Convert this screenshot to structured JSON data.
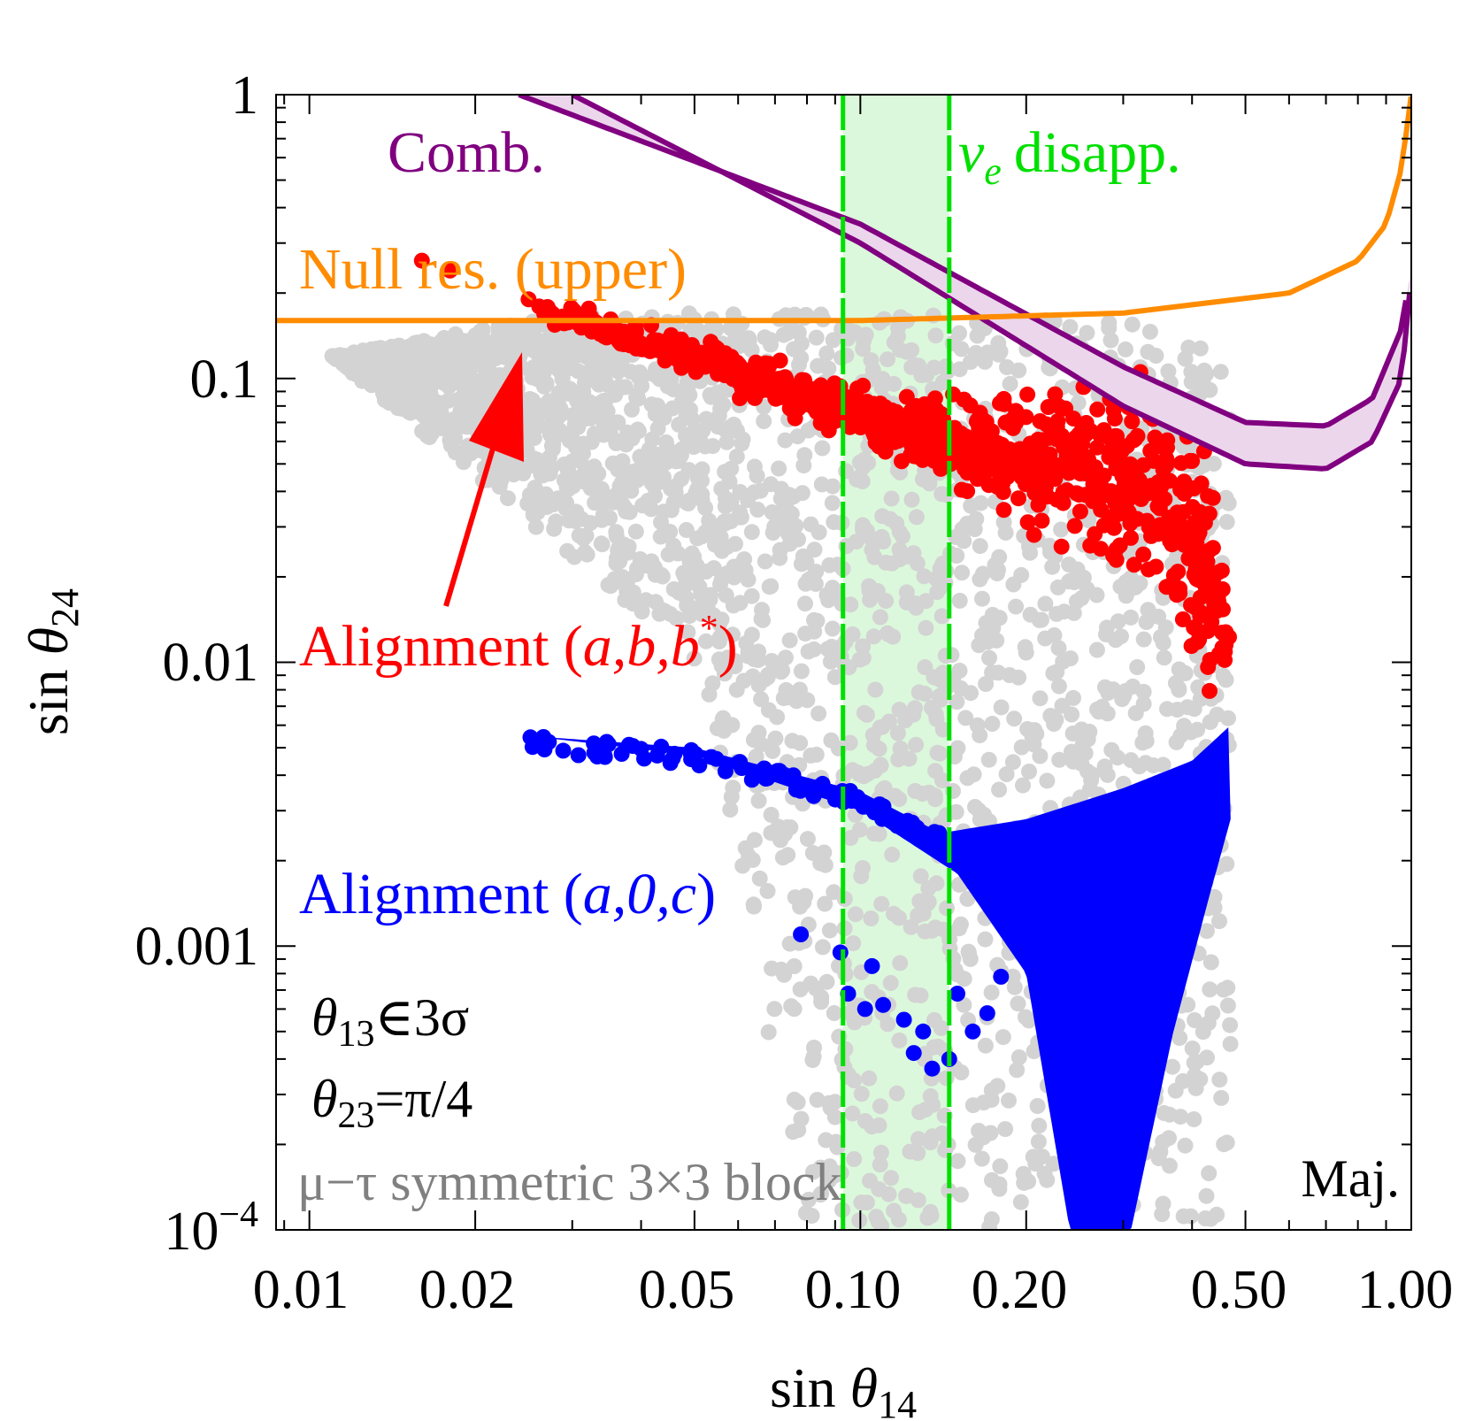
{
  "chart_data": {
    "type": "scatter",
    "title": "",
    "xlabel": "sin θ14",
    "ylabel": "sin θ24",
    "xscale": "log",
    "yscale": "log",
    "xlim": [
      0.0087,
      1.0
    ],
    "ylim": [
      0.0001,
      1.0
    ],
    "x_ticks": [
      {
        "value": 0.01,
        "label": "0.01"
      },
      {
        "value": 0.02,
        "label": "0.02"
      },
      {
        "value": 0.05,
        "label": "0.05"
      },
      {
        "value": 0.1,
        "label": "0.10"
      },
      {
        "value": 0.2,
        "label": "0.20"
      },
      {
        "value": 0.5,
        "label": "0.50"
      },
      {
        "value": 1.0,
        "label": "1.00"
      }
    ],
    "y_ticks": [
      {
        "value": 1,
        "label": "1"
      },
      {
        "value": 0.1,
        "label": "0.1"
      },
      {
        "value": 0.01,
        "label": "0.01"
      },
      {
        "value": 0.001,
        "label": "0.001"
      },
      {
        "value": 0.0001,
        "label": "10",
        "sup": "−4"
      }
    ],
    "colors": {
      "gray": "#d3d3d3",
      "red": "#ff0000",
      "blue": "#0000ff",
      "orange": "#ff8c00",
      "purple": "#800080",
      "purple_fill": "#ecd6ec",
      "green": "#00e000",
      "green_fill": "#dcf8dc"
    },
    "series": [
      {
        "name": "μ−τ symmetric 3×3 block",
        "kind": "scatter_region",
        "color": "#d3d3d3",
        "x_range": [
          0.011,
          0.47
        ],
        "upper_edge": [
          [
            0.011,
            0.12
          ],
          [
            0.03,
            0.17
          ],
          [
            0.1,
            0.17
          ],
          [
            0.3,
            0.16
          ],
          [
            0.45,
            0.13
          ],
          [
            0.47,
            0.1
          ]
        ],
        "lower_edge": [
          [
            0.011,
            0.12
          ],
          [
            0.05,
            0.01
          ],
          [
            0.08,
            0.0001
          ],
          [
            0.47,
            0.0001
          ]
        ]
      },
      {
        "name": "Alignment (a,b,b*)",
        "kind": "scatter_band",
        "color": "#ff0000",
        "center": [
          [
            0.016,
            0.25
          ],
          [
            0.025,
            0.18
          ],
          [
            0.05,
            0.12
          ],
          [
            0.1,
            0.072
          ],
          [
            0.16,
            0.058
          ],
          [
            0.25,
            0.05
          ],
          [
            0.35,
            0.04
          ],
          [
            0.42,
            0.02
          ],
          [
            0.46,
            0.012
          ]
        ],
        "spread_decades": [
          0.02,
          0.02,
          0.05,
          0.07,
          0.12,
          0.2,
          0.3,
          0.3,
          0.15
        ]
      },
      {
        "name": "Alignment (a,0,c)",
        "kind": "scatter_band",
        "color": "#0000ff",
        "upper": [
          [
            0.025,
            0.0055
          ],
          [
            0.05,
            0.005
          ],
          [
            0.1,
            0.0035
          ],
          [
            0.14,
            0.0025
          ],
          [
            0.2,
            0.0028
          ],
          [
            0.3,
            0.0036
          ],
          [
            0.4,
            0.0045
          ],
          [
            0.47,
            0.006
          ]
        ],
        "lower": [
          [
            0.025,
            0.0055
          ],
          [
            0.05,
            0.0047
          ],
          [
            0.1,
            0.003
          ],
          [
            0.15,
            0.0018
          ],
          [
            0.2,
            0.0008
          ],
          [
            0.24,
            0.0001
          ],
          [
            0.31,
            0.0001
          ],
          [
            0.37,
            0.0005
          ],
          [
            0.43,
            0.0015
          ],
          [
            0.47,
            0.0028
          ]
        ],
        "extra_points": [
          [
            0.078,
            0.0011
          ],
          [
            0.092,
            0.00095
          ],
          [
            0.105,
            0.00085
          ],
          [
            0.095,
            0.00068
          ],
          [
            0.102,
            0.0006
          ],
          [
            0.11,
            0.00062
          ],
          [
            0.12,
            0.00055
          ],
          [
            0.13,
            0.0005
          ],
          [
            0.125,
            0.00042
          ],
          [
            0.135,
            0.00037
          ],
          [
            0.145,
            0.0004
          ],
          [
            0.16,
            0.0005
          ],
          [
            0.17,
            0.00058
          ],
          [
            0.15,
            0.00068
          ],
          [
            0.18,
            0.00078
          ]
        ]
      },
      {
        "name": "Comb.",
        "kind": "line_band",
        "color": "#800080",
        "upper": [
          [
            0.024,
            1.0
          ],
          [
            0.1,
            0.35
          ],
          [
            0.3,
            0.11
          ],
          [
            0.5,
            0.07
          ],
          [
            0.7,
            0.068
          ],
          [
            0.85,
            0.085
          ],
          [
            0.96,
            0.15
          ],
          [
            1.0,
            0.25
          ]
        ],
        "lower": [
          [
            0.03,
            1.0
          ],
          [
            0.1,
            0.3
          ],
          [
            0.3,
            0.08
          ],
          [
            0.5,
            0.05
          ],
          [
            0.7,
            0.048
          ],
          [
            0.85,
            0.06
          ],
          [
            0.96,
            0.1
          ],
          [
            1.0,
            0.23
          ]
        ]
      },
      {
        "name": "Null res. (upper)",
        "kind": "line",
        "color": "#ff8c00",
        "points": [
          [
            0.0087,
            0.16
          ],
          [
            0.1,
            0.16
          ],
          [
            0.3,
            0.17
          ],
          [
            0.6,
            0.2
          ],
          [
            0.8,
            0.26
          ],
          [
            0.9,
            0.35
          ],
          [
            0.96,
            0.55
          ],
          [
            1.0,
            1.0
          ]
        ]
      },
      {
        "name": "νe disapp.",
        "kind": "vertical_band",
        "color": "#00e000",
        "x": [
          0.093,
          0.145
        ]
      }
    ],
    "annotations": [
      {
        "id": "comb",
        "text": "Comb.",
        "color": "#800080"
      },
      {
        "id": "nue",
        "text": "disapp.",
        "symbol": "ν",
        "sub": "e",
        "color": "#00e000"
      },
      {
        "id": "nullres",
        "text": "Null res. (upper)",
        "color": "#ff8c00"
      },
      {
        "id": "align_red",
        "prefix": "Alignment (",
        "vars": "a,b,b",
        "sup": "*",
        "suffix": ")",
        "color": "#ff0000"
      },
      {
        "id": "align_blue",
        "prefix": "Alignment (",
        "vars": "a,0,c",
        "suffix": ")",
        "color": "#0000ff"
      },
      {
        "id": "theta13",
        "sym": "θ",
        "sub": "13",
        "rel": "∈3σ",
        "color": "#000000"
      },
      {
        "id": "theta23",
        "sym": "θ",
        "sub": "23",
        "rel": "=π/4",
        "color": "#000000"
      },
      {
        "id": "mutau",
        "text": "μ−τ symmetric 3×3 block",
        "color": "#808080"
      },
      {
        "id": "maj",
        "text": "Maj.",
        "color": "#000000"
      }
    ]
  }
}
